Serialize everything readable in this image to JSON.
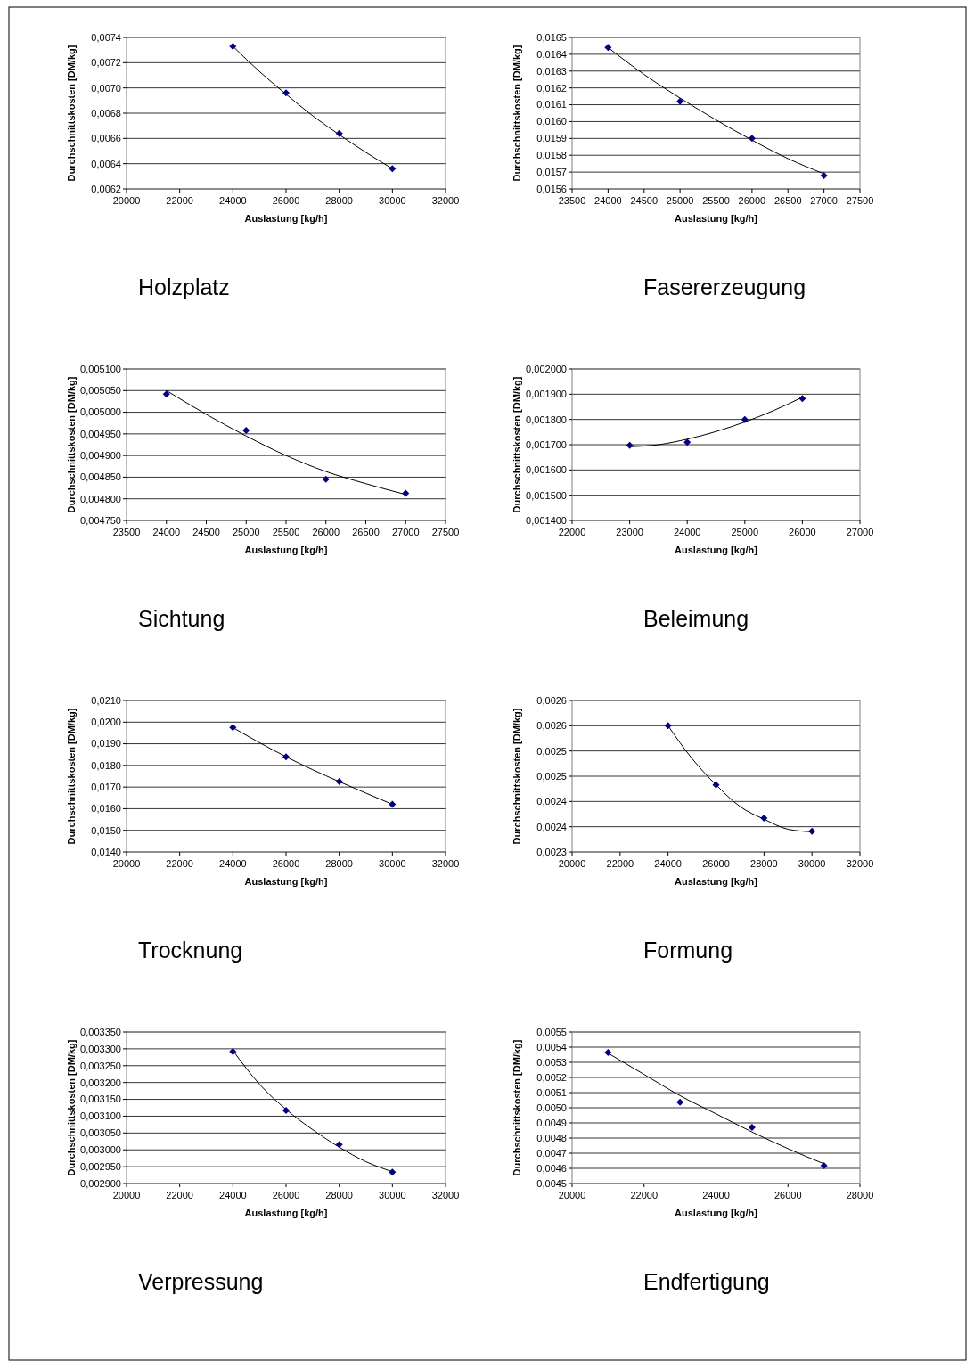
{
  "chart_data": [
    {
      "type": "scatter",
      "title": "Holzplatz",
      "xlabel": "Auslastung [kg/h]",
      "ylabel": "Durchschnittskosten [DM/kg]",
      "xlim": [
        20000,
        32000
      ],
      "xticks": [
        20000,
        22000,
        24000,
        26000,
        28000,
        30000,
        32000
      ],
      "ylim": [
        0.0062,
        0.0074
      ],
      "yticks": [
        {
          "value": 0.0062,
          "label": "0,0062"
        },
        {
          "value": 0.0064,
          "label": "0,0064"
        },
        {
          "value": 0.0066,
          "label": "0,0066"
        },
        {
          "value": 0.0068,
          "label": "0,0068"
        },
        {
          "value": 0.007,
          "label": "0,0070"
        },
        {
          "value": 0.0072,
          "label": "0,0072"
        },
        {
          "value": 0.0074,
          "label": "0,0074"
        }
      ],
      "grid": "y",
      "series": [
        {
          "marker": "diamond",
          "color": "#000080",
          "x": [
            24000,
            26000,
            28000,
            30000
          ],
          "values": [
            0.00733,
            0.00696,
            0.00664,
            0.00636
          ]
        },
        {
          "type": "line",
          "color": "#000000",
          "x": [
            24000,
            25000,
            26000,
            27000,
            28000,
            29000,
            30000
          ],
          "values": [
            0.00733,
            0.00713,
            0.00695,
            0.00678,
            0.00663,
            0.00649,
            0.00636
          ]
        }
      ]
    },
    {
      "type": "scatter",
      "title": "Fasererzeugung",
      "xlabel": "Auslastung [kg/h]",
      "ylabel": "Durchschnittskosten [DM/kg]",
      "xlim": [
        23500,
        27500
      ],
      "xticks": [
        23500,
        24000,
        24500,
        25000,
        25500,
        26000,
        26500,
        27000,
        27500
      ],
      "ylim": [
        0.0156,
        0.0165
      ],
      "yticks": [
        {
          "value": 0.0156,
          "label": "0,0156"
        },
        {
          "value": 0.0157,
          "label": "0,0157"
        },
        {
          "value": 0.0158,
          "label": "0,0158"
        },
        {
          "value": 0.0159,
          "label": "0,0159"
        },
        {
          "value": 0.016,
          "label": "0,0160"
        },
        {
          "value": 0.0161,
          "label": "0,0161"
        },
        {
          "value": 0.0162,
          "label": "0,0162"
        },
        {
          "value": 0.0163,
          "label": "0,0163"
        },
        {
          "value": 0.0164,
          "label": "0,0164"
        },
        {
          "value": 0.0165,
          "label": "0,0165"
        }
      ],
      "grid": "y",
      "series": [
        {
          "marker": "diamond",
          "color": "#000080",
          "x": [
            24000,
            25000,
            26000,
            27000
          ],
          "values": [
            0.01644,
            0.01612,
            0.0159,
            0.01568
          ]
        },
        {
          "type": "line",
          "color": "#000000",
          "x": [
            24000,
            24500,
            25000,
            25500,
            26000,
            26500,
            27000
          ],
          "values": [
            0.01644,
            0.01628,
            0.01614,
            0.01601,
            0.01589,
            0.01578,
            0.01569
          ]
        }
      ]
    },
    {
      "type": "scatter",
      "title": "Sichtung",
      "xlabel": "Auslastung [kg/h]",
      "ylabel": "Durchschnittskosten [DM/kg]",
      "xlim": [
        23500,
        27500
      ],
      "xticks": [
        23500,
        24000,
        24500,
        25000,
        25500,
        26000,
        26500,
        27000,
        27500
      ],
      "ylim": [
        0.00475,
        0.0051
      ],
      "yticks": [
        {
          "value": 0.00475,
          "label": "0,004750"
        },
        {
          "value": 0.0048,
          "label": "0,004800"
        },
        {
          "value": 0.00485,
          "label": "0,004850"
        },
        {
          "value": 0.0049,
          "label": "0,004900"
        },
        {
          "value": 0.00495,
          "label": "0,004950"
        },
        {
          "value": 0.005,
          "label": "0,005000"
        },
        {
          "value": 0.00505,
          "label": "0,005050"
        },
        {
          "value": 0.0051,
          "label": "0,005100"
        }
      ],
      "grid": "y",
      "series": [
        {
          "marker": "diamond",
          "color": "#000080",
          "x": [
            24000,
            25000,
            26000,
            27000
          ],
          "values": [
            0.005042,
            0.004958,
            0.004845,
            0.004813
          ]
        },
        {
          "type": "line",
          "color": "#000000",
          "x": [
            24000,
            24500,
            25000,
            25500,
            26000,
            26500,
            27000
          ],
          "values": [
            0.00505,
            0.004995,
            0.004945,
            0.0049,
            0.004863,
            0.004835,
            0.00481
          ]
        }
      ]
    },
    {
      "type": "scatter",
      "title": "Beleimung",
      "xlabel": "Auslastung [kg/h]",
      "ylabel": "Durchschnittskosten [DM/kg]",
      "xlim": [
        22000,
        27000
      ],
      "xticks": [
        22000,
        23000,
        24000,
        25000,
        26000,
        27000
      ],
      "ylim": [
        0.0014,
        0.002
      ],
      "yticks": [
        {
          "value": 0.0014,
          "label": "0,001400"
        },
        {
          "value": 0.0015,
          "label": "0,001500"
        },
        {
          "value": 0.0016,
          "label": "0,001600"
        },
        {
          "value": 0.0017,
          "label": "0,001700"
        },
        {
          "value": 0.0018,
          "label": "0,001800"
        },
        {
          "value": 0.0019,
          "label": "0,001900"
        },
        {
          "value": 0.002,
          "label": "0,002000"
        }
      ],
      "grid": "y",
      "series": [
        {
          "marker": "diamond",
          "color": "#000080",
          "x": [
            23000,
            24000,
            25000,
            26000
          ],
          "values": [
            0.001697,
            0.00171,
            0.0018,
            0.001883
          ]
        },
        {
          "type": "line",
          "color": "#000000",
          "x": [
            23000,
            23500,
            24000,
            24500,
            25000,
            25500,
            26000
          ],
          "values": [
            0.001692,
            0.0017,
            0.001722,
            0.001752,
            0.00179,
            0.001835,
            0.001888
          ]
        }
      ]
    },
    {
      "type": "scatter",
      "title": "Trocknung",
      "xlabel": "Auslastung [kg/h]",
      "ylabel": "Durchschnittskosten [DM/kg]",
      "xlim": [
        20000,
        32000
      ],
      "xticks": [
        20000,
        22000,
        24000,
        26000,
        28000,
        30000,
        32000
      ],
      "ylim": [
        0.014,
        0.021
      ],
      "yticks": [
        {
          "value": 0.014,
          "label": "0,0140"
        },
        {
          "value": 0.015,
          "label": "0,0150"
        },
        {
          "value": 0.016,
          "label": "0,0160"
        },
        {
          "value": 0.017,
          "label": "0,0170"
        },
        {
          "value": 0.018,
          "label": "0,0180"
        },
        {
          "value": 0.019,
          "label": "0,0190"
        },
        {
          "value": 0.02,
          "label": "0,0200"
        },
        {
          "value": 0.021,
          "label": "0,0210"
        }
      ],
      "grid": "y",
      "series": [
        {
          "marker": "diamond",
          "color": "#000080",
          "x": [
            24000,
            26000,
            28000,
            30000
          ],
          "values": [
            0.01975,
            0.0184,
            0.01725,
            0.0162
          ]
        },
        {
          "type": "line",
          "color": "#000000",
          "x": [
            24000,
            25000,
            26000,
            27000,
            28000,
            29000,
            30000
          ],
          "values": [
            0.01975,
            0.01905,
            0.0184,
            0.0178,
            0.01725,
            0.01672,
            0.0162
          ]
        }
      ]
    },
    {
      "type": "scatter",
      "title": "Formung",
      "xlabel": "Auslastung [kg/h]",
      "ylabel": "Durchschnittskosten [DM/kg]",
      "xlim": [
        20000,
        32000
      ],
      "xticks": [
        20000,
        22000,
        24000,
        26000,
        28000,
        30000,
        32000
      ],
      "ylim": [
        0.0023,
        0.0026
      ],
      "yticks": [
        {
          "value": 0.0023,
          "label": "0,0023"
        },
        {
          "value": 0.00235,
          "label": "0,0024"
        },
        {
          "value": 0.0024,
          "label": "0,0024"
        },
        {
          "value": 0.00245,
          "label": "0,0025"
        },
        {
          "value": 0.0025,
          "label": "0,0025"
        },
        {
          "value": 0.00255,
          "label": "0,0026"
        },
        {
          "value": 0.0026,
          "label": "0,0026"
        }
      ],
      "grid": "y",
      "series": [
        {
          "marker": "diamond",
          "color": "#000080",
          "x": [
            24000,
            26000,
            28000,
            30000
          ],
          "values": [
            0.00255,
            0.002433,
            0.002367,
            0.002341
          ]
        },
        {
          "type": "line",
          "color": "#000000",
          "x": [
            24000,
            25000,
            26000,
            27000,
            28000,
            29000,
            30000
          ],
          "values": [
            0.00255,
            0.002485,
            0.002433,
            0.00239,
            0.002365,
            0.002345,
            0.00234
          ]
        }
      ]
    },
    {
      "type": "scatter",
      "title": "Verpressung",
      "xlabel": "Auslastung [kg/h]",
      "ylabel": "Durchschnittskosten [DM/kg]",
      "xlim": [
        20000,
        32000
      ],
      "xticks": [
        20000,
        22000,
        24000,
        26000,
        28000,
        30000,
        32000
      ],
      "ylim": [
        0.0029,
        0.00335
      ],
      "yticks": [
        {
          "value": 0.0029,
          "label": "0,002900"
        },
        {
          "value": 0.00295,
          "label": "0,002950"
        },
        {
          "value": 0.003,
          "label": "0,003000"
        },
        {
          "value": 0.00305,
          "label": "0,003050"
        },
        {
          "value": 0.0031,
          "label": "0,003100"
        },
        {
          "value": 0.00315,
          "label": "0,003150"
        },
        {
          "value": 0.0032,
          "label": "0,003200"
        },
        {
          "value": 0.00325,
          "label": "0,003250"
        },
        {
          "value": 0.0033,
          "label": "0,003300"
        },
        {
          "value": 0.00335,
          "label": "0,003350"
        }
      ],
      "grid": "y",
      "series": [
        {
          "marker": "diamond",
          "color": "#000080",
          "x": [
            24000,
            26000,
            28000,
            30000
          ],
          "values": [
            0.003292,
            0.003117,
            0.003016,
            0.002934
          ]
        },
        {
          "type": "line",
          "color": "#000000",
          "x": [
            24000,
            25000,
            26000,
            27000,
            28000,
            29000,
            30000
          ],
          "values": [
            0.003295,
            0.003195,
            0.00312,
            0.00306,
            0.003008,
            0.002965,
            0.002935
          ]
        }
      ]
    },
    {
      "type": "scatter",
      "title": "Endfertigung",
      "xlabel": "Auslastung [kg/h]",
      "ylabel": "Durchschnittskosten [DM/kg]",
      "xlim": [
        20000,
        28000
      ],
      "xticks": [
        20000,
        22000,
        24000,
        26000,
        28000
      ],
      "ylim": [
        0.0045,
        0.0055
      ],
      "yticks": [
        {
          "value": 0.0045,
          "label": "0,0045"
        },
        {
          "value": 0.0046,
          "label": "0,0046"
        },
        {
          "value": 0.0047,
          "label": "0,0047"
        },
        {
          "value": 0.0048,
          "label": "0,0048"
        },
        {
          "value": 0.0049,
          "label": "0,0049"
        },
        {
          "value": 0.005,
          "label": "0,0050"
        },
        {
          "value": 0.0051,
          "label": "0,0051"
        },
        {
          "value": 0.0052,
          "label": "0,0052"
        },
        {
          "value": 0.0053,
          "label": "0,0053"
        },
        {
          "value": 0.0054,
          "label": "0,0054"
        },
        {
          "value": 0.0055,
          "label": "0,0055"
        }
      ],
      "grid": "y",
      "series": [
        {
          "marker": "diamond",
          "color": "#000080",
          "x": [
            21000,
            23000,
            25000,
            27000
          ],
          "values": [
            0.005365,
            0.005037,
            0.00487,
            0.004617
          ]
        },
        {
          "type": "line",
          "color": "#000000",
          "x": [
            21000,
            22000,
            23000,
            24000,
            25000,
            26000,
            27000
          ],
          "values": [
            0.00536,
            0.00522,
            0.00508,
            0.00496,
            0.00484,
            0.00473,
            0.00463
          ]
        }
      ]
    }
  ]
}
